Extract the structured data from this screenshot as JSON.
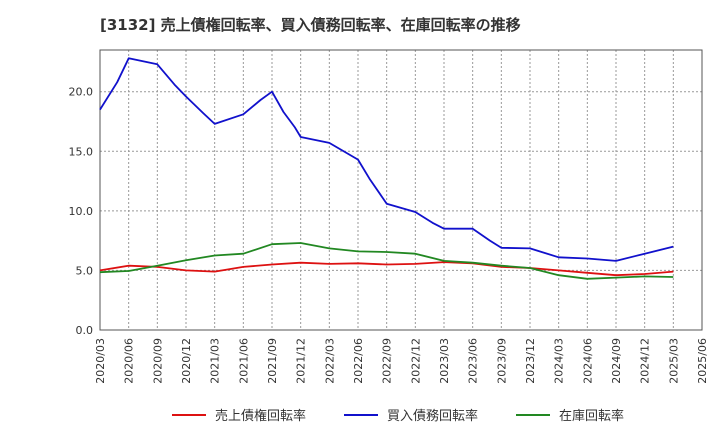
{
  "chart_data": {
    "type": "line",
    "title": "[3132]  売上債権回転率、買入債務回転率、在庫回転率の推移",
    "xlabel": "",
    "ylabel": "",
    "ylim": [
      0,
      23.5
    ],
    "yticks": [
      0.0,
      5.0,
      10.0,
      15.0,
      20.0
    ],
    "ytick_labels": [
      "0.0",
      "5.0",
      "10.0",
      "15.0",
      "20.0"
    ],
    "grid": true,
    "legend_position": "bottom",
    "categories": [
      "2020/03",
      "2020/06",
      "2020/09",
      "2020/12",
      "2021/03",
      "2021/06",
      "2021/09",
      "2021/12",
      "2022/03",
      "2022/06",
      "2022/09",
      "2022/12",
      "2023/03",
      "2023/06",
      "2023/09",
      "2023/12",
      "2024/03",
      "2024/06",
      "2024/09",
      "2024/12",
      "2025/03",
      "2025/06"
    ],
    "x": [
      2020.0,
      2020.25,
      2020.5,
      2020.75,
      2021.0,
      2021.25,
      2021.5,
      2021.75,
      2022.0,
      2022.25,
      2022.5,
      2022.75,
      2023.0,
      2023.25,
      2023.5,
      2023.75,
      2024.0,
      2024.25,
      2024.5,
      2024.75,
      2025.0,
      2025.25
    ],
    "series": [
      {
        "name": "売上債権回転率",
        "color": "#dd1111",
        "points": [
          [
            2020.0,
            5.0
          ],
          [
            2020.25,
            5.4
          ],
          [
            2020.5,
            5.3
          ],
          [
            2020.75,
            5.0
          ],
          [
            2021.0,
            4.9
          ],
          [
            2021.25,
            5.3
          ],
          [
            2021.5,
            5.5
          ],
          [
            2021.75,
            5.65
          ],
          [
            2022.0,
            5.55
          ],
          [
            2022.25,
            5.6
          ],
          [
            2022.5,
            5.5
          ],
          [
            2022.75,
            5.55
          ],
          [
            2023.0,
            5.7
          ],
          [
            2023.25,
            5.6
          ],
          [
            2023.5,
            5.3
          ],
          [
            2023.75,
            5.2
          ],
          [
            2024.0,
            5.0
          ],
          [
            2024.25,
            4.8
          ],
          [
            2024.5,
            4.6
          ],
          [
            2024.75,
            4.7
          ],
          [
            2025.0,
            4.9
          ]
        ]
      },
      {
        "name": "買入債務回転率",
        "color": "#1111cc",
        "points": [
          [
            2020.0,
            18.5
          ],
          [
            2020.15,
            20.8
          ],
          [
            2020.25,
            22.8
          ],
          [
            2020.5,
            22.3
          ],
          [
            2020.65,
            20.6
          ],
          [
            2020.75,
            19.6
          ],
          [
            2020.9,
            18.2
          ],
          [
            2021.0,
            17.3
          ],
          [
            2021.25,
            18.1
          ],
          [
            2021.4,
            19.3
          ],
          [
            2021.5,
            20.0
          ],
          [
            2021.6,
            18.3
          ],
          [
            2021.7,
            17.0
          ],
          [
            2021.75,
            16.2
          ],
          [
            2022.0,
            15.7
          ],
          [
            2022.25,
            14.3
          ],
          [
            2022.35,
            12.7
          ],
          [
            2022.5,
            10.6
          ],
          [
            2022.75,
            9.9
          ],
          [
            2022.9,
            9.0
          ],
          [
            2023.0,
            8.5
          ],
          [
            2023.25,
            8.5
          ],
          [
            2023.4,
            7.5
          ],
          [
            2023.5,
            6.9
          ],
          [
            2023.75,
            6.85
          ],
          [
            2024.0,
            6.1
          ],
          [
            2024.25,
            6.0
          ],
          [
            2024.5,
            5.8
          ],
          [
            2024.75,
            6.4
          ],
          [
            2025.0,
            7.0
          ]
        ]
      },
      {
        "name": "在庫回転率",
        "color": "#228822",
        "points": [
          [
            2020.0,
            4.85
          ],
          [
            2020.25,
            4.95
          ],
          [
            2020.5,
            5.4
          ],
          [
            2020.75,
            5.85
          ],
          [
            2021.0,
            6.25
          ],
          [
            2021.25,
            6.4
          ],
          [
            2021.5,
            7.2
          ],
          [
            2021.75,
            7.3
          ],
          [
            2022.0,
            6.85
          ],
          [
            2022.25,
            6.6
          ],
          [
            2022.5,
            6.55
          ],
          [
            2022.75,
            6.4
          ],
          [
            2023.0,
            5.8
          ],
          [
            2023.25,
            5.65
          ],
          [
            2023.5,
            5.4
          ],
          [
            2023.75,
            5.2
          ],
          [
            2024.0,
            4.6
          ],
          [
            2024.25,
            4.3
          ],
          [
            2024.5,
            4.4
          ],
          [
            2024.75,
            4.5
          ],
          [
            2025.0,
            4.45
          ]
        ]
      }
    ]
  }
}
